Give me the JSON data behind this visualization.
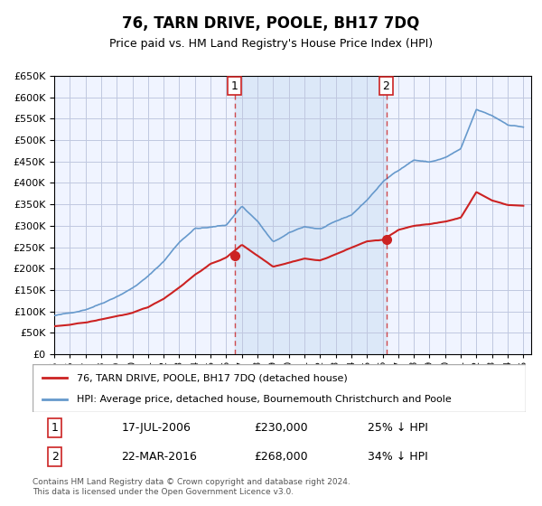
{
  "title": "76, TARN DRIVE, POOLE, BH17 7DQ",
  "subtitle": "Price paid vs. HM Land Registry's House Price Index (HPI)",
  "xlabel": "",
  "ylabel": "",
  "ylim": [
    0,
    650000
  ],
  "yticks": [
    0,
    50000,
    100000,
    150000,
    200000,
    250000,
    300000,
    350000,
    400000,
    450000,
    500000,
    550000,
    600000,
    650000
  ],
  "xlim_start": 1995.0,
  "xlim_end": 2025.5,
  "background_color": "#ffffff",
  "plot_bg_color": "#f0f4ff",
  "grid_color": "#c0c8e0",
  "hpi_color": "#6699cc",
  "price_color": "#cc2222",
  "sale1_date": 2006.54,
  "sale1_price": 230000,
  "sale1_label": "1",
  "sale1_hpi_note": "25% ↓ HPI",
  "sale1_date_str": "17-JUL-2006",
  "sale2_date": 2016.23,
  "sale2_price": 268000,
  "sale2_label": "2",
  "sale2_hpi_note": "34% ↓ HPI",
  "sale2_date_str": "22-MAR-2016",
  "legend_line1": "76, TARN DRIVE, POOLE, BH17 7DQ (detached house)",
  "legend_line2": "HPI: Average price, detached house, Bournemouth Christchurch and Poole",
  "footnote": "Contains HM Land Registry data © Crown copyright and database right 2024.\nThis data is licensed under the Open Government Licence v3.0.",
  "table_row1": [
    "1",
    "17-JUL-2006",
    "£230,000",
    "25% ↓ HPI"
  ],
  "table_row2": [
    "2",
    "22-MAR-2016",
    "£268,000",
    "34% ↓ HPI"
  ]
}
